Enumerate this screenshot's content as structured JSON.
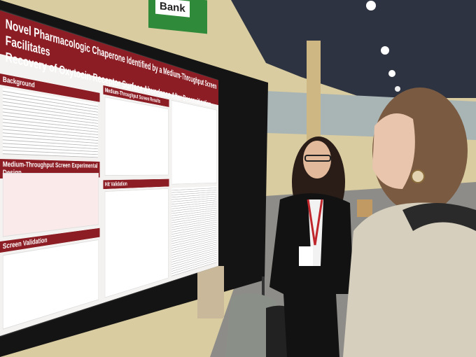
{
  "sign": "Bank",
  "poster": {
    "title_line1": "Novel Pharmacologic Chaperone Identified by a Medium-Throughput Screen Facilitates",
    "title_line2": "Recovery of Oxytocin Receptor Surface Abundance After Desensitization",
    "sections": [
      "Background",
      "Medium-Throughput Screen Experimental Design",
      "Screen Validation",
      "Medium-Throughput Screen Results",
      "Hit Validation"
    ]
  }
}
